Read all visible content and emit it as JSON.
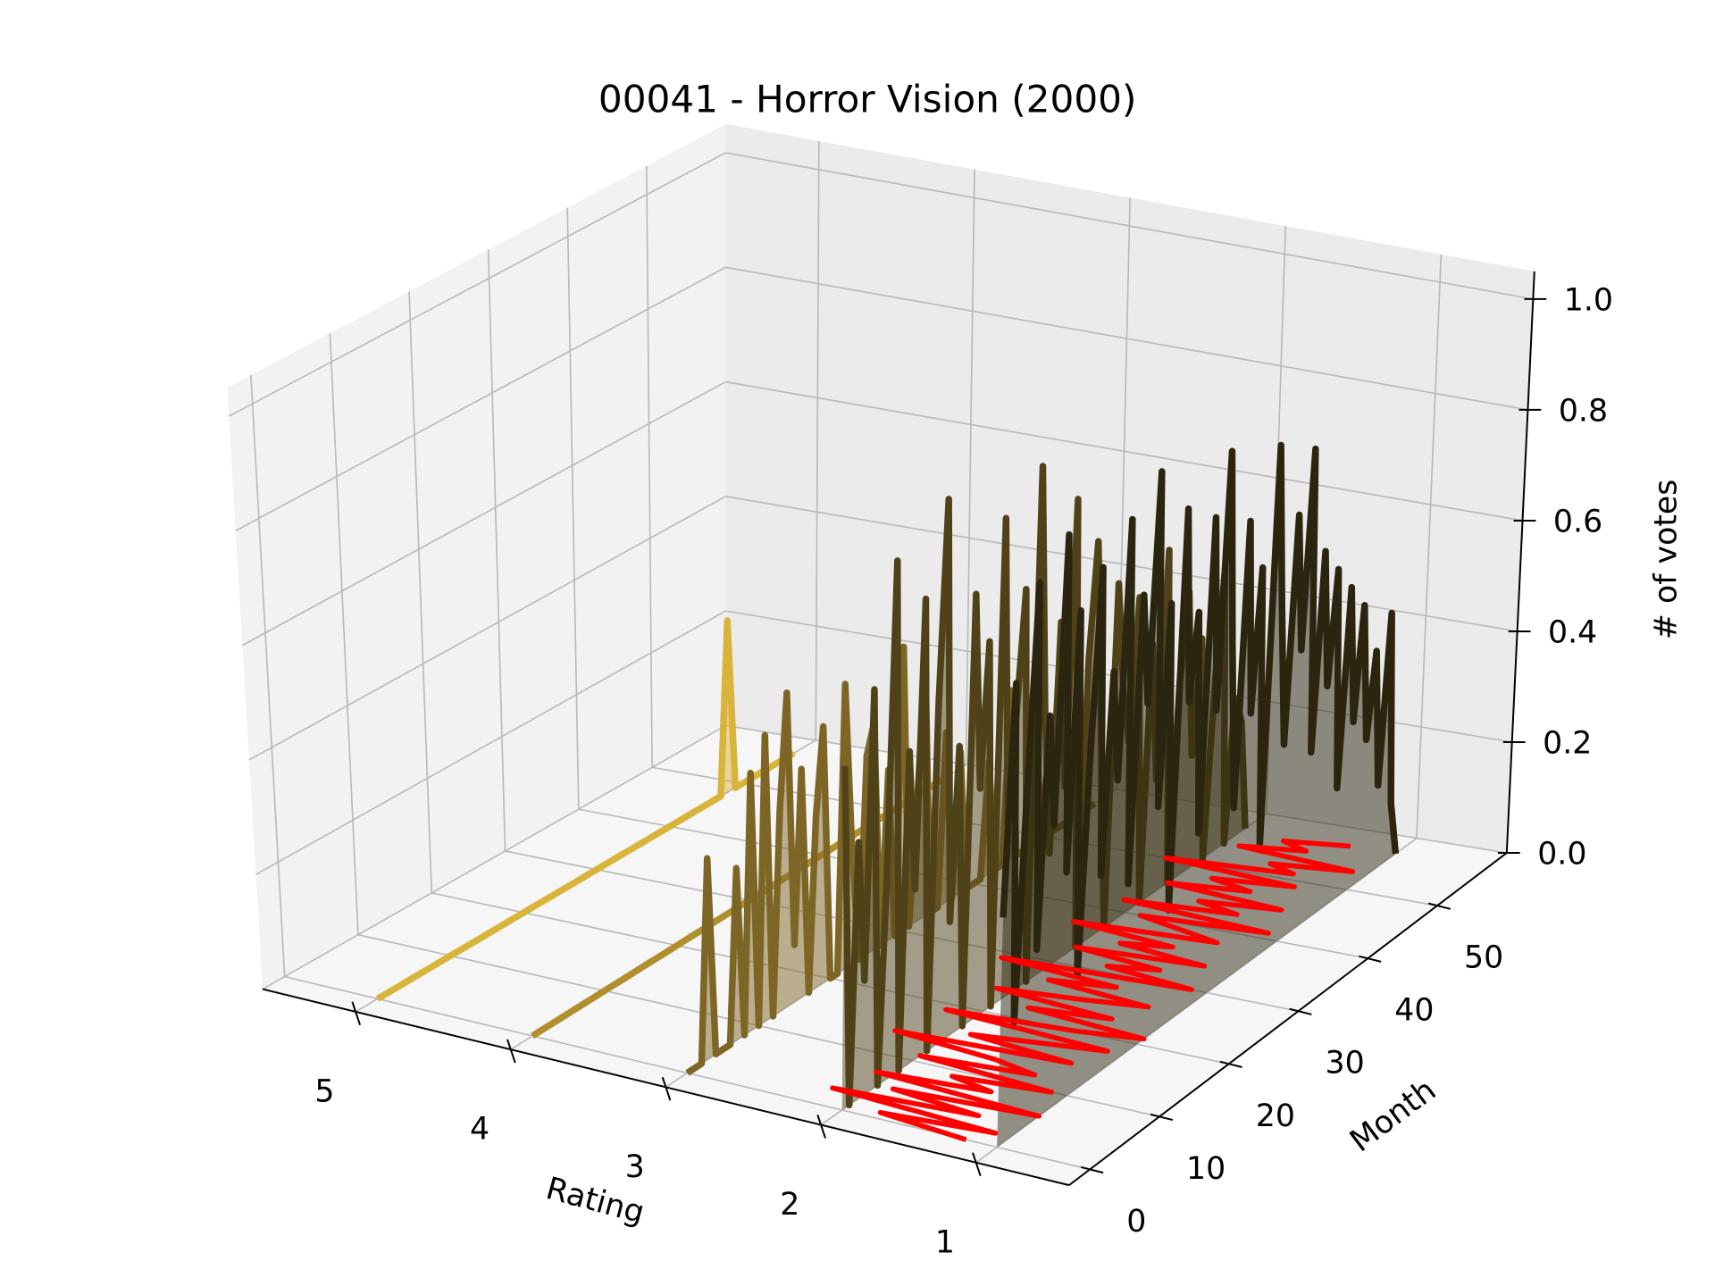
{
  "chart_data": {
    "type": "line3d",
    "title": "00041 - Horror Vision (2000)",
    "xlabel": "Rating",
    "ylabel": "Month",
    "zlabel": "# of votes",
    "xlim": [
      0.4,
      5.6
    ],
    "xticks": [
      1,
      2,
      3,
      4,
      5
    ],
    "ylim": [
      -3,
      60
    ],
    "yticks": [
      0,
      10,
      20,
      30,
      40,
      50
    ],
    "zlim": [
      0,
      1.05
    ],
    "zticks": [
      {
        "value": 0,
        "label": "0.0"
      },
      {
        "value": 0.2,
        "label": "0.2"
      },
      {
        "value": 0.4,
        "label": "0.4"
      },
      {
        "value": 0.6,
        "label": "0.6"
      },
      {
        "value": 0.8,
        "label": "0.8"
      },
      {
        "value": 1.0,
        "label": "1.0"
      }
    ],
    "grid": true,
    "x": [
      0,
      1,
      2,
      3,
      4,
      5,
      6,
      7,
      8,
      9,
      10,
      11,
      12,
      13,
      14,
      15,
      16,
      17,
      18,
      19,
      20,
      21,
      22,
      23,
      24,
      25,
      26,
      27,
      28,
      29,
      30,
      31,
      32,
      33,
      34,
      35,
      36,
      37,
      38,
      39,
      40,
      41,
      42,
      43,
      44,
      45,
      46,
      47,
      48,
      49,
      50,
      51,
      52,
      53,
      54,
      55,
      56,
      57
    ],
    "series": [
      {
        "rating": 5,
        "color": "#d9b43a",
        "values": [
          0,
          0,
          0,
          0,
          0,
          0,
          0,
          0,
          0,
          0,
          0,
          0,
          0,
          0,
          0,
          0,
          0,
          0,
          0,
          0,
          0,
          0,
          0,
          0,
          0,
          0,
          0,
          0,
          0,
          0,
          0,
          0,
          0,
          0,
          0,
          0,
          0,
          0,
          0,
          0,
          0,
          0,
          0,
          0,
          0,
          0,
          0,
          0,
          0.3,
          0,
          0,
          0,
          0,
          0,
          0,
          0,
          0,
          0
        ]
      },
      {
        "rating": 4,
        "color": "#b08f2f",
        "values": [
          0,
          0,
          0,
          0,
          0,
          0,
          0,
          0,
          0,
          0,
          0,
          0,
          0,
          0,
          0,
          0,
          0,
          0,
          0,
          0,
          0,
          0,
          0,
          0,
          0,
          0,
          0,
          0,
          0,
          0,
          0,
          0,
          0,
          0,
          0,
          0,
          0,
          0,
          0,
          0,
          0,
          0,
          0,
          0,
          0,
          0,
          0,
          0,
          0,
          0,
          0,
          0,
          0,
          0,
          0,
          0,
          0,
          0
        ]
      },
      {
        "rating": 3,
        "color": "#7d6526",
        "values": [
          0,
          0,
          0,
          0.35,
          0,
          0,
          0,
          0.3,
          0,
          0.45,
          0,
          0.5,
          0,
          0.35,
          0.55,
          0.1,
          0.4,
          0,
          0.3,
          0.45,
          0,
          0,
          0.5,
          0.2,
          0,
          0.35,
          0.4,
          0,
          0.3,
          0,
          0.5,
          0,
          0.2,
          0.45,
          0,
          0,
          0.3,
          0,
          0.25,
          0,
          0,
          0,
          0.2,
          0,
          0,
          0.3,
          0,
          0,
          0,
          0,
          0.1,
          0,
          0,
          0,
          0,
          0,
          0,
          0
        ]
      },
      {
        "rating": 2,
        "color": "#4f4219",
        "values": [
          0.6,
          0,
          0.45,
          0.2,
          0.7,
          0,
          0.35,
          0.9,
          0,
          0.55,
          0.3,
          0.8,
          0,
          0.6,
          0.95,
          0.2,
          0.5,
          0,
          0.75,
          0.4,
          0.65,
          0,
          0.85,
          0.3,
          0.5,
          0.7,
          0,
          0.9,
          0.45,
          0.2,
          0.6,
          0.3,
          0.8,
          0,
          0.5,
          0.7,
          0.35,
          0,
          0.6,
          0.4,
          0.3,
          0.55,
          0,
          0.45,
          0.2,
          0.6,
          0,
          0.35,
          0.5,
          0.2,
          0.4,
          0,
          0.3,
          0.5,
          0,
          0.25,
          0.2,
          0
        ]
      },
      {
        "rating": 1,
        "color": "#2b250f",
        "values": [
          0.4,
          0.8,
          0.2,
          0.6,
          0.95,
          0.3,
          0.7,
          0.5,
          1.0,
          0.4,
          0.85,
          0.2,
          0.6,
          0.9,
          0.35,
          0.7,
          0.5,
          0.95,
          0.3,
          0.8,
          0.6,
          1.0,
          0.4,
          0.75,
          0.2,
          0.9,
          0.55,
          0.7,
          0.3,
          0.85,
          0.5,
          0.95,
          0.6,
          0.3,
          0.8,
          0.45,
          0.7,
          0.2,
          0.9,
          0.6,
          0.35,
          0.75,
          0.5,
          0.85,
          0.3,
          0.65,
          0.4,
          0.6,
          0.2,
          0.55,
          0.3,
          0.5,
          0.25,
          0.4,
          0.15,
          0.45,
          0.1,
          0
        ]
      }
    ],
    "trend": {
      "color": "#ff0000",
      "values": [
        1.2,
        1.8,
        1.1,
        2.2,
        1.3,
        1.9,
        1.0,
        2.1,
        1.4,
        1.7,
        1.1,
        2.0,
        1.3,
        1.6,
        2.3,
        1.2,
        1.9,
        1.5,
        1.1,
        2.2,
        1.4,
        1.0,
        1.8,
        1.3,
        2.1,
        1.6,
        1.2,
        1.9,
        1.5,
        2.3,
        1.1,
        1.7,
        1.4,
        2.0,
        1.2,
        1.8,
        1.5,
        2.2,
        1.3,
        1.6,
        1.9,
        1.1,
        2.1,
        1.4,
        1.7,
        1.2,
        2.0,
        1.5,
        1.8,
        1.3,
        2.2,
        1.4,
        1.6,
        1.1,
        1.9,
        1.5,
        1.7,
        1.3
      ]
    }
  }
}
